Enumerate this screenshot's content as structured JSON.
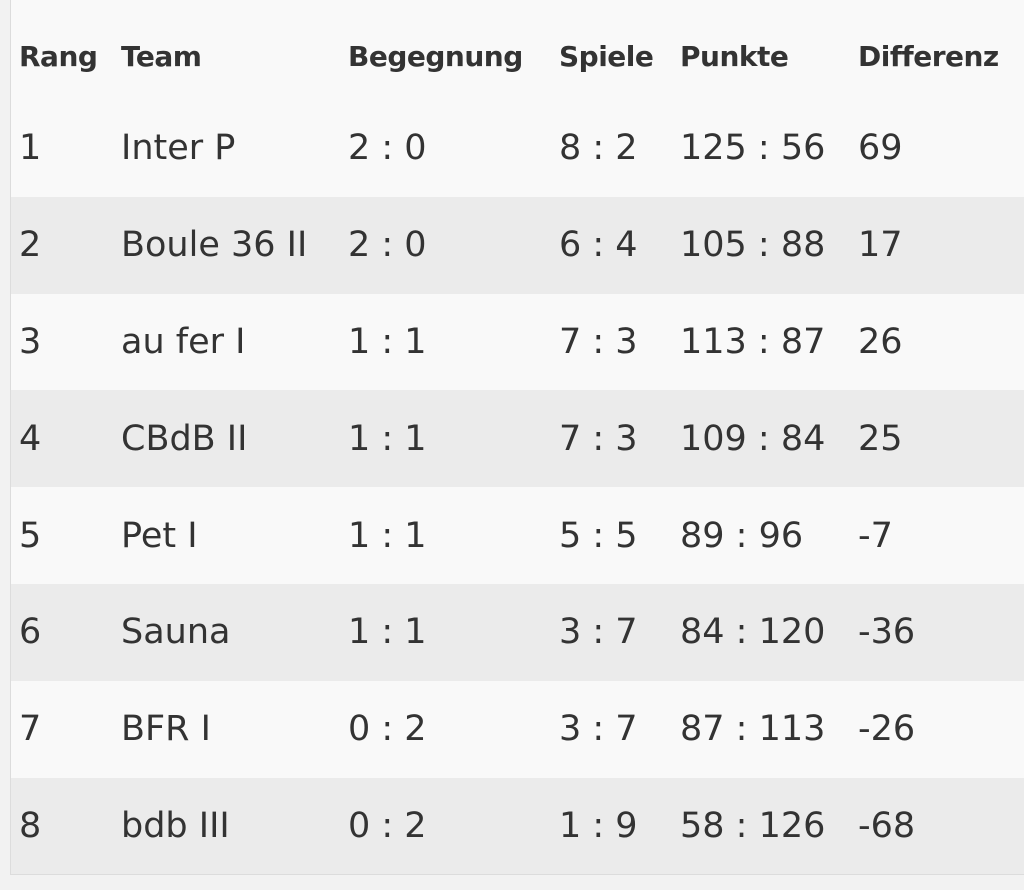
{
  "table": {
    "header": [
      "Rang",
      "Team",
      "Begegnung",
      "Spiele",
      "Punkte",
      "Differenz"
    ],
    "rows": [
      [
        "1",
        "Inter P",
        "2 : 0",
        "8 : 2",
        "125 : 56",
        "69"
      ],
      [
        "2",
        "Boule 36 II",
        "2 : 0",
        "6 : 4",
        "105 : 88",
        "17"
      ],
      [
        "3",
        "au fer I",
        "1 : 1",
        "7 : 3",
        "113 : 87",
        "26"
      ],
      [
        "4",
        "CBdB II",
        "1 : 1",
        "7 : 3",
        "109 : 84",
        "25"
      ],
      [
        "5",
        "Pet I",
        "1 : 1",
        "5 : 5",
        "89 : 96",
        "-7"
      ],
      [
        "6",
        "Sauna",
        "1 : 1",
        "3 : 7",
        "84 : 120",
        "-36"
      ],
      [
        "7",
        "BFR I",
        "0 : 2",
        "3 : 7",
        "87 : 113",
        "-26"
      ],
      [
        "8",
        "bdb III",
        "0 : 2",
        "1 : 9",
        "58 : 126",
        "-68"
      ]
    ]
  }
}
